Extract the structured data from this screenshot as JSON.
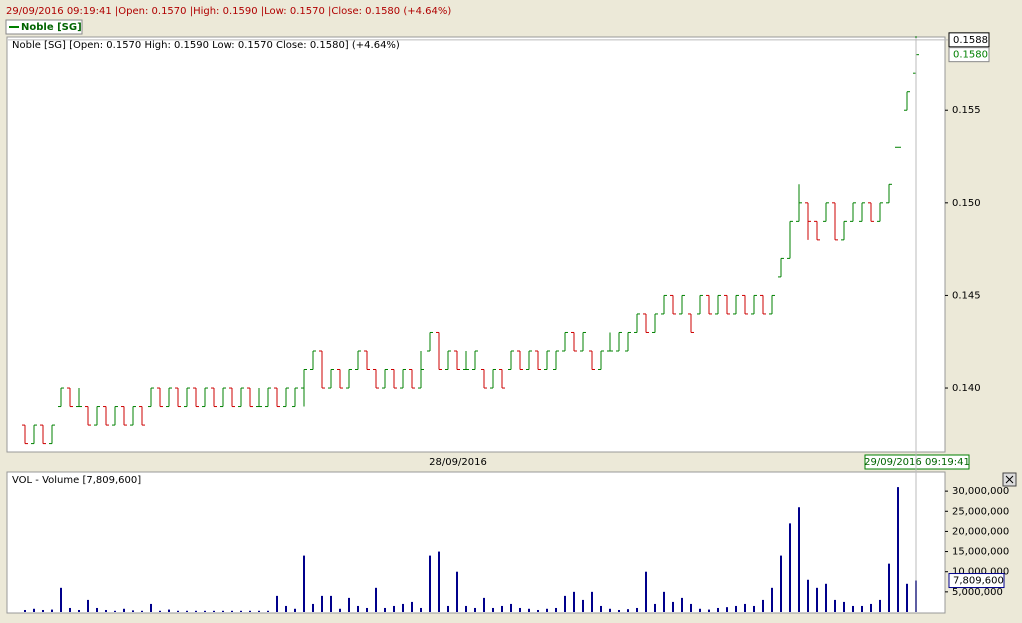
{
  "chart_data": {
    "type": "ohlc",
    "header": "29/09/2016 09:19:41 |Open: 0.1570 |High: 0.1590 |Low: 0.1570 |Close: 0.1580 (+4.64%)",
    "legend": "Noble [SG]",
    "info": "Noble [SG] [Open: 0.1570  High: 0.1590  Low: 0.1570  Close: 0.1580] (+4.64%)",
    "x_label": "28/09/2016",
    "crosshair_time": "29/09/2016 09:19:41",
    "crosshair_price": 0.1588,
    "last_close": {
      "value": 0.158,
      "label": "0.1580"
    },
    "up_color": "#008000",
    "down_color": "#cc0000",
    "volume_color": "#00008b",
    "ylim": [
      0.1366,
      0.1589
    ],
    "yticks": [
      {
        "value": 0.14,
        "label": "0.140"
      },
      {
        "value": 0.145,
        "label": "0.145"
      },
      {
        "value": 0.15,
        "label": "0.150"
      },
      {
        "value": 0.155,
        "label": "0.155"
      }
    ],
    "ohlc": [
      [
        0.138,
        0.138,
        0.137,
        0.137
      ],
      [
        0.137,
        0.138,
        0.137,
        0.138
      ],
      [
        0.138,
        0.138,
        0.137,
        0.137
      ],
      [
        0.137,
        0.138,
        0.137,
        0.138
      ],
      [
        0.139,
        0.14,
        0.139,
        0.14
      ],
      [
        0.14,
        0.14,
        0.139,
        0.139
      ],
      [
        0.139,
        0.14,
        0.139,
        0.139
      ],
      [
        0.139,
        0.139,
        0.138,
        0.138
      ],
      [
        0.138,
        0.139,
        0.138,
        0.139
      ],
      [
        0.139,
        0.139,
        0.138,
        0.138
      ],
      [
        0.138,
        0.139,
        0.138,
        0.139
      ],
      [
        0.139,
        0.139,
        0.138,
        0.138
      ],
      [
        0.138,
        0.139,
        0.138,
        0.139
      ],
      [
        0.139,
        0.139,
        0.138,
        0.138
      ],
      [
        0.139,
        0.14,
        0.139,
        0.14
      ],
      [
        0.14,
        0.14,
        0.139,
        0.139
      ],
      [
        0.139,
        0.14,
        0.139,
        0.14
      ],
      [
        0.14,
        0.14,
        0.139,
        0.139
      ],
      [
        0.139,
        0.14,
        0.139,
        0.14
      ],
      [
        0.14,
        0.14,
        0.139,
        0.139
      ],
      [
        0.139,
        0.14,
        0.139,
        0.14
      ],
      [
        0.14,
        0.14,
        0.139,
        0.139
      ],
      [
        0.139,
        0.14,
        0.139,
        0.14
      ],
      [
        0.14,
        0.14,
        0.139,
        0.139
      ],
      [
        0.139,
        0.14,
        0.139,
        0.14
      ],
      [
        0.14,
        0.14,
        0.139,
        0.139
      ],
      [
        0.139,
        0.14,
        0.139,
        0.139
      ],
      [
        0.139,
        0.14,
        0.139,
        0.14
      ],
      [
        0.14,
        0.14,
        0.139,
        0.139
      ],
      [
        0.139,
        0.14,
        0.139,
        0.14
      ],
      [
        0.139,
        0.14,
        0.139,
        0.14
      ],
      [
        0.14,
        0.141,
        0.139,
        0.141
      ],
      [
        0.141,
        0.142,
        0.141,
        0.142
      ],
      [
        0.142,
        0.142,
        0.14,
        0.14
      ],
      [
        0.14,
        0.141,
        0.14,
        0.141
      ],
      [
        0.141,
        0.141,
        0.14,
        0.14
      ],
      [
        0.14,
        0.141,
        0.14,
        0.141
      ],
      [
        0.141,
        0.142,
        0.141,
        0.142
      ],
      [
        0.142,
        0.142,
        0.141,
        0.141
      ],
      [
        0.141,
        0.141,
        0.14,
        0.14
      ],
      [
        0.14,
        0.141,
        0.14,
        0.141
      ],
      [
        0.141,
        0.141,
        0.14,
        0.14
      ],
      [
        0.14,
        0.141,
        0.14,
        0.141
      ],
      [
        0.141,
        0.141,
        0.14,
        0.14
      ],
      [
        0.14,
        0.142,
        0.14,
        0.141
      ],
      [
        0.142,
        0.143,
        0.142,
        0.143
      ],
      [
        0.143,
        0.143,
        0.141,
        0.141
      ],
      [
        0.141,
        0.142,
        0.141,
        0.142
      ],
      [
        0.142,
        0.142,
        0.141,
        0.141
      ],
      [
        0.141,
        0.142,
        0.141,
        0.141
      ],
      [
        0.141,
        0.142,
        0.141,
        0.142
      ],
      [
        0.141,
        0.141,
        0.14,
        0.14
      ],
      [
        0.14,
        0.141,
        0.14,
        0.141
      ],
      [
        0.141,
        0.141,
        0.14,
        0.14
      ],
      [
        0.141,
        0.142,
        0.141,
        0.142
      ],
      [
        0.142,
        0.142,
        0.141,
        0.141
      ],
      [
        0.141,
        0.142,
        0.141,
        0.142
      ],
      [
        0.142,
        0.142,
        0.141,
        0.141
      ],
      [
        0.141,
        0.142,
        0.141,
        0.142
      ],
      [
        0.141,
        0.142,
        0.141,
        0.142
      ],
      [
        0.142,
        0.143,
        0.142,
        0.143
      ],
      [
        0.143,
        0.143,
        0.142,
        0.142
      ],
      [
        0.142,
        0.143,
        0.142,
        0.143
      ],
      [
        0.142,
        0.142,
        0.141,
        0.141
      ],
      [
        0.141,
        0.142,
        0.141,
        0.142
      ],
      [
        0.142,
        0.143,
        0.142,
        0.142
      ],
      [
        0.142,
        0.143,
        0.142,
        0.143
      ],
      [
        0.142,
        0.143,
        0.142,
        0.143
      ],
      [
        0.143,
        0.144,
        0.143,
        0.144
      ],
      [
        0.144,
        0.144,
        0.143,
        0.143
      ],
      [
        0.143,
        0.144,
        0.143,
        0.144
      ],
      [
        0.144,
        0.145,
        0.144,
        0.145
      ],
      [
        0.145,
        0.145,
        0.144,
        0.144
      ],
      [
        0.144,
        0.145,
        0.144,
        0.145
      ],
      [
        0.144,
        0.144,
        0.143,
        0.143
      ],
      [
        0.144,
        0.145,
        0.144,
        0.145
      ],
      [
        0.145,
        0.145,
        0.144,
        0.144
      ],
      [
        0.144,
        0.145,
        0.144,
        0.145
      ],
      [
        0.145,
        0.145,
        0.144,
        0.144
      ],
      [
        0.144,
        0.145,
        0.144,
        0.145
      ],
      [
        0.145,
        0.145,
        0.144,
        0.144
      ],
      [
        0.144,
        0.145,
        0.144,
        0.145
      ],
      [
        0.145,
        0.145,
        0.144,
        0.144
      ],
      [
        0.144,
        0.145,
        0.144,
        0.145
      ],
      [
        0.146,
        0.147,
        0.146,
        0.147
      ],
      [
        0.147,
        0.149,
        0.147,
        0.149
      ],
      [
        0.149,
        0.151,
        0.149,
        0.15
      ],
      [
        0.15,
        0.15,
        0.148,
        0.149
      ],
      [
        0.149,
        0.149,
        0.148,
        0.148
      ],
      [
        0.149,
        0.15,
        0.149,
        0.15
      ],
      [
        0.15,
        0.15,
        0.148,
        0.148
      ],
      [
        0.148,
        0.149,
        0.148,
        0.149
      ],
      [
        0.149,
        0.15,
        0.149,
        0.15
      ],
      [
        0.149,
        0.15,
        0.149,
        0.15
      ],
      [
        0.15,
        0.15,
        0.149,
        0.149
      ],
      [
        0.149,
        0.15,
        0.149,
        0.15
      ],
      [
        0.15,
        0.151,
        0.15,
        0.151
      ],
      [
        0.153,
        0.153,
        0.153,
        0.153
      ],
      [
        0.155,
        0.156,
        0.155,
        0.156
      ],
      [
        0.157,
        0.159,
        0.157,
        0.158
      ]
    ],
    "volume_title": "VOL - Volume [7,809,600]",
    "volume_last": {
      "value": 7809600,
      "label": "7,809,600"
    },
    "vlim": [
      0,
      34750000
    ],
    "vticks": [
      {
        "value": 5000000,
        "label": "5,000,000"
      },
      {
        "value": 10000000,
        "label": "10,000,000"
      },
      {
        "value": 15000000,
        "label": "15,000,000"
      },
      {
        "value": 20000000,
        "label": "20,000,000"
      },
      {
        "value": 25000000,
        "label": "25,000,000"
      },
      {
        "value": 30000000,
        "label": "30,000,000"
      }
    ],
    "volume": [
      500000,
      800000,
      500000,
      600000,
      6000000,
      1000000,
      500000,
      3000000,
      1000000,
      500000,
      300000,
      800000,
      400000,
      300000,
      2000000,
      300000,
      600000,
      300000,
      300000,
      300000,
      300000,
      300000,
      300000,
      300000,
      300000,
      300000,
      300000,
      300000,
      4000000,
      1500000,
      800000,
      14000000,
      2000000,
      4000000,
      4000000,
      800000,
      3500000,
      1500000,
      1000000,
      6000000,
      1000000,
      1500000,
      2000000,
      2500000,
      1000000,
      14000000,
      15000000,
      1500000,
      10000000,
      1500000,
      1000000,
      3500000,
      1000000,
      1500000,
      2000000,
      1000000,
      800000,
      500000,
      800000,
      1000000,
      4000000,
      5000000,
      3000000,
      5000000,
      1500000,
      800000,
      500000,
      700000,
      1000000,
      10000000,
      2000000,
      5000000,
      2500000,
      3500000,
      2000000,
      800000,
      600000,
      1000000,
      1200000,
      1500000,
      2000000,
      1500000,
      3000000,
      6000000,
      14000000,
      22000000,
      26000000,
      8000000,
      6000000,
      7000000,
      3000000,
      2500000,
      1500000,
      1500000,
      2000000,
      3000000,
      12000000,
      31000000,
      7000000,
      7809600
    ]
  }
}
